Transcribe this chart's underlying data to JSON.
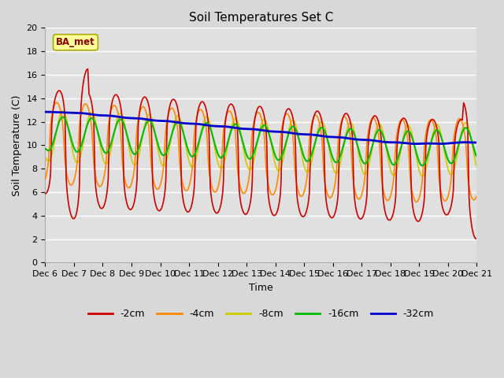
{
  "title": "Soil Temperatures Set C",
  "xlabel": "Time",
  "ylabel": "Soil Temperature (C)",
  "ylim": [
    0,
    20
  ],
  "tick_labels": [
    "Dec 6",
    "Dec 7",
    "Dec 8",
    "Dec 9",
    "Dec 10",
    "Dec 11",
    "Dec 12",
    "Dec 13",
    "Dec 14",
    "Dec 15",
    "Dec 16",
    "Dec 17",
    "Dec 18",
    "Dec 19",
    "Dec 20",
    "Dec 21"
  ],
  "colors": {
    "-2cm": "#cc0000",
    "-4cm": "#ff8800",
    "-8cm": "#cccc00",
    "-16cm": "#00bb00",
    "-32cm": "#0000cc"
  },
  "annotation_text": "BA_met",
  "bg_color": "#d8d8d8",
  "plot_bg": "#e0e0e0",
  "grid_color": "#ffffff",
  "title_fontsize": 11,
  "label_fontsize": 9,
  "tick_fontsize": 8
}
